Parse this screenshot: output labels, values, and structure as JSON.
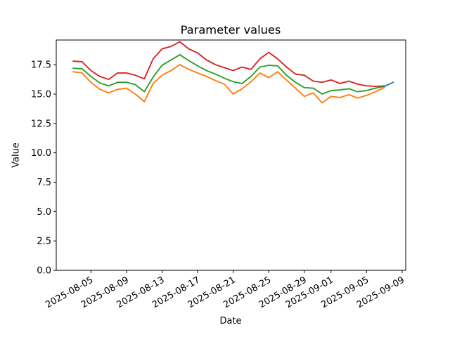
{
  "chart_data": {
    "type": "line",
    "title": "Parameter values",
    "xlabel": "Date",
    "ylabel": "Value",
    "grid": false,
    "legend": "none",
    "background_color": "#ffffff",
    "ylim": [
      0,
      19.6
    ],
    "y_axis": {
      "tick_values": [
        0,
        2.5,
        5,
        7.5,
        10,
        12.5,
        15,
        17.5
      ],
      "tick_labels": [
        "0.0",
        "2.5",
        "5.0",
        "7.5",
        "10.0",
        "12.5",
        "15.0",
        "17.5"
      ]
    },
    "x_axis": {
      "origin_date": "2025-08-03",
      "xlim_day_offsets": [
        -1.9,
        37.4
      ],
      "tick_label_rotation_deg": 30,
      "tick_dates": [
        "2025-08-05",
        "2025-08-09",
        "2025-08-13",
        "2025-08-17",
        "2025-08-21",
        "2025-08-25",
        "2025-08-29",
        "2025-09-01",
        "2025-09-05",
        "2025-09-09"
      ]
    },
    "dates": [
      "2025-08-03",
      "2025-08-04",
      "2025-08-05",
      "2025-08-06",
      "2025-08-07",
      "2025-08-08",
      "2025-08-09",
      "2025-08-10",
      "2025-08-11",
      "2025-08-12",
      "2025-08-13",
      "2025-08-14",
      "2025-08-15",
      "2025-08-16",
      "2025-08-17",
      "2025-08-18",
      "2025-08-19",
      "2025-08-20",
      "2025-08-21",
      "2025-08-22",
      "2025-08-23",
      "2025-08-24",
      "2025-08-25",
      "2025-08-26",
      "2025-08-27",
      "2025-08-28",
      "2025-08-29",
      "2025-08-30",
      "2025-08-31",
      "2025-09-01",
      "2025-09-02",
      "2025-09-03",
      "2025-09-04",
      "2025-09-05",
      "2025-09-06",
      "2025-09-07"
    ],
    "series": [
      {
        "name": "red-line",
        "color": "#d62728",
        "values": [
          17.8,
          17.75,
          17.0,
          16.5,
          16.25,
          16.8,
          16.8,
          16.6,
          16.3,
          18.0,
          18.85,
          19.05,
          19.45,
          18.85,
          18.5,
          17.9,
          17.5,
          17.25,
          17.0,
          17.3,
          17.1,
          18.0,
          18.55,
          18.0,
          17.3,
          16.7,
          16.6,
          16.1,
          16.0,
          16.2,
          15.9,
          16.1,
          15.85,
          15.7,
          15.65,
          15.7
        ]
      },
      {
        "name": "green-line",
        "color": "#2ca02c",
        "values": [
          17.2,
          17.15,
          16.5,
          15.95,
          15.7,
          16.0,
          16.0,
          15.8,
          15.2,
          16.45,
          17.45,
          17.9,
          18.35,
          17.85,
          17.4,
          17.0,
          16.7,
          16.35,
          16.05,
          15.9,
          16.5,
          17.3,
          17.45,
          17.4,
          16.6,
          16.0,
          15.55,
          15.5,
          15.0,
          15.3,
          15.35,
          15.45,
          15.2,
          15.3,
          15.5,
          15.65
        ]
      },
      {
        "name": "orange-line",
        "color": "#ff7f0e",
        "values": [
          16.9,
          16.8,
          16.0,
          15.4,
          15.1,
          15.4,
          15.5,
          15.0,
          14.35,
          15.9,
          16.6,
          17.0,
          17.5,
          17.1,
          16.8,
          16.5,
          16.15,
          15.85,
          15.0,
          15.45,
          16.05,
          16.8,
          16.4,
          16.9,
          16.2,
          15.5,
          14.8,
          15.1,
          14.25,
          14.8,
          14.7,
          14.95,
          14.65,
          14.9,
          15.2,
          15.55
        ]
      },
      {
        "name": "blue-end-segment",
        "color": "#1f77b4",
        "dates": [
          "2025-09-07",
          "2025-09-08"
        ],
        "values": [
          15.65,
          16.0
        ]
      }
    ]
  }
}
